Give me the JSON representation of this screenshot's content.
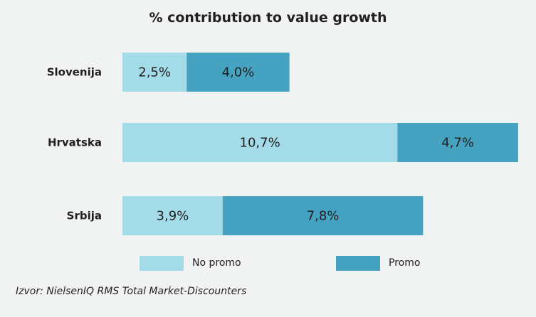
{
  "colors": {
    "no_promo": "#a3dbe8",
    "promo": "#45a3c1",
    "text": "#231f20",
    "background": "#f1f2f2"
  },
  "chart_data": {
    "type": "bar",
    "orientation": "horizontal",
    "stacked": true,
    "title": "% contribution to value growth",
    "categories": [
      "Slovenija",
      "Hrvatska",
      "Srbija"
    ],
    "series": [
      {
        "name": "No promo",
        "values": [
          2.5,
          10.7,
          3.9
        ],
        "labels": [
          "2,5%",
          "10,7%",
          "3,9%"
        ]
      },
      {
        "name": "Promo",
        "values": [
          4.0,
          4.7,
          7.8
        ],
        "labels": [
          "4,0%",
          "4,7%",
          "7,8%"
        ]
      }
    ],
    "xlim": [
      0,
      15.4
    ],
    "grid": false,
    "axes_visible": false,
    "legend_position": "bottom"
  },
  "source": "Izvor: NielsenIQ RMS Total Market-Discounters"
}
